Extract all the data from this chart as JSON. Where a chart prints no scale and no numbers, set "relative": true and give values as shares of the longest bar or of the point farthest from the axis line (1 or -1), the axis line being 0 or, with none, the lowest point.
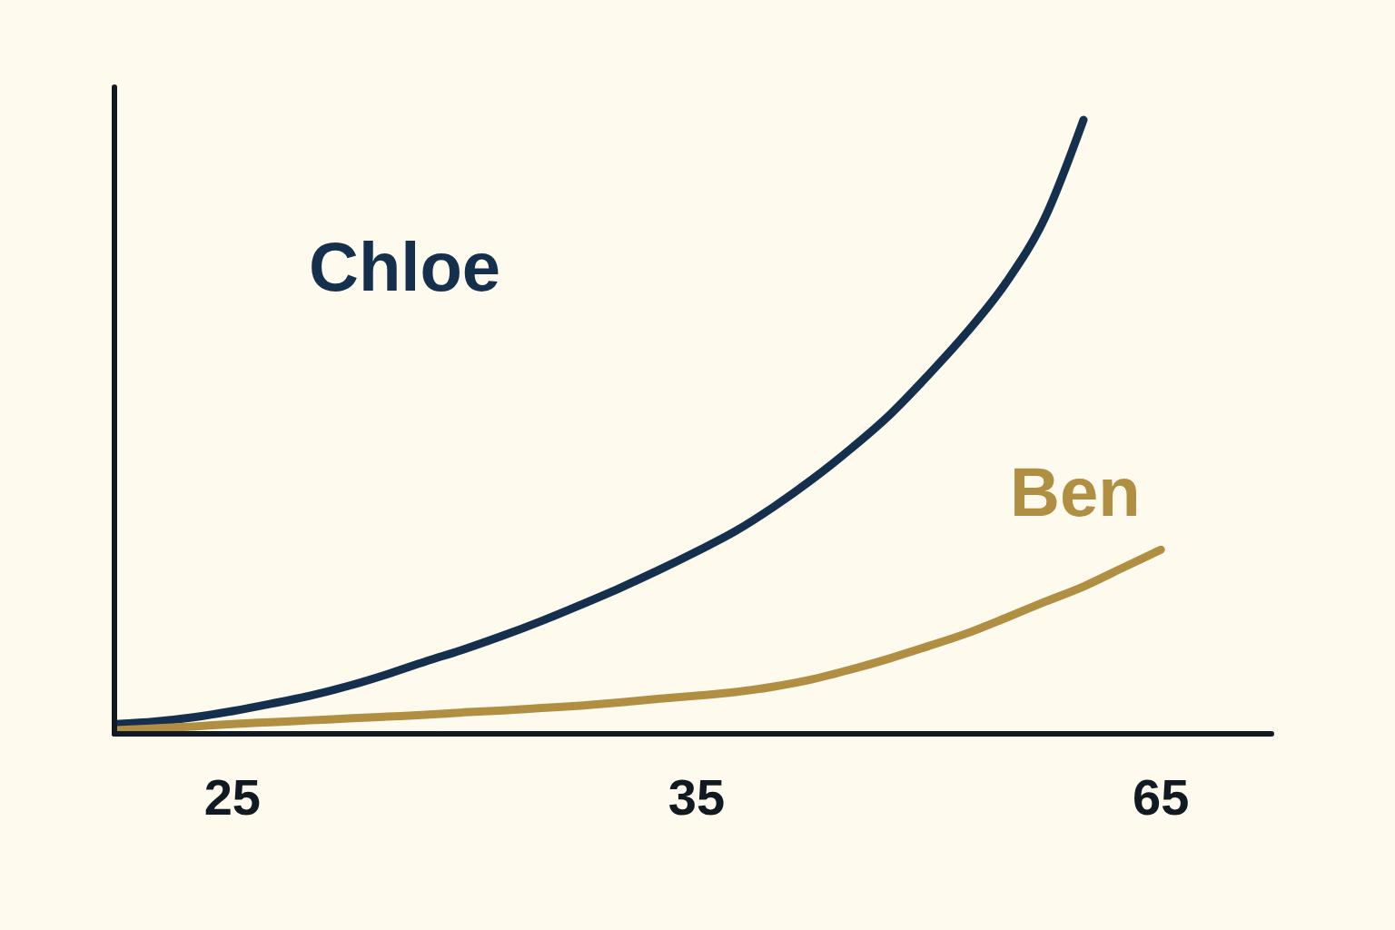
{
  "chart_data": {
    "type": "line",
    "relative": true,
    "legend": false,
    "grid": false,
    "marker": "none",
    "line_style": "solid",
    "categories": [
      null,
      null,
      null,
      "25",
      null,
      null,
      null,
      null,
      null,
      null,
      null,
      null,
      null,
      null,
      null,
      "35",
      null,
      null,
      null,
      null,
      null,
      null,
      null,
      null,
      null,
      null,
      null,
      "65",
      null,
      null
    ],
    "series": [
      {
        "name": "Chloe",
        "color": "#14304d",
        "values": [
          0.016,
          0.02,
          0.027,
          0.037,
          0.049,
          0.062,
          0.078,
          0.097,
          0.118,
          0.138,
          0.16,
          0.184,
          0.21,
          0.237,
          0.266,
          0.297,
          0.33,
          0.37,
          0.415,
          0.465,
          0.52,
          0.585,
          0.655,
          0.735,
          0.84,
          1.0,
          null,
          null,
          null,
          null
        ]
      },
      {
        "name": "Ben",
        "color": "#b08f42",
        "values": [
          0.006,
          0.009,
          0.012,
          0.016,
          0.019,
          0.022,
          0.025,
          0.028,
          0.031,
          0.035,
          0.038,
          0.042,
          0.046,
          0.051,
          0.057,
          0.062,
          0.068,
          0.077,
          0.089,
          0.105,
          0.123,
          0.143,
          0.164,
          0.189,
          0.215,
          0.24,
          0.27,
          0.3,
          null,
          null
        ]
      }
    ]
  }
}
